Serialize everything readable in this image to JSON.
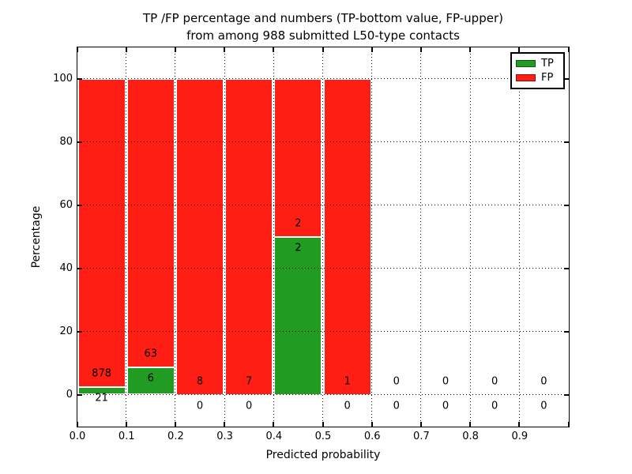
{
  "figure": {
    "title_line1": "TP /FP percentage and numbers (TP-bottom value, FP-upper)",
    "title_line2": "from among 988 submitted L50-type contacts",
    "xlabel": "Predicted probability",
    "ylabel": "Percentage"
  },
  "colors": {
    "tp_green": "#229b22",
    "fp_red": "#ff1e14",
    "grid": "#000000",
    "text": "#000000",
    "background": "#ffffff"
  },
  "legend": {
    "position": "upper right",
    "entries": [
      {
        "label": "TP",
        "color_key": "tp_green"
      },
      {
        "label": "FP",
        "color_key": "fp_red"
      }
    ]
  },
  "chart_data": {
    "type": "bar",
    "stacked": true,
    "title": "TP /FP percentage and numbers (TP-bottom value, FP-upper) from among 988 submitted L50-type contacts",
    "xlabel": "Predicted probability",
    "ylabel": "Percentage",
    "total_contacts": 988,
    "xlim": [
      0.0,
      1.0
    ],
    "ylim": [
      -10,
      110
    ],
    "bin_width": 0.1,
    "grid": "dotted",
    "legend_position": "upper right",
    "categories": [
      "0.0-0.1",
      "0.1-0.2",
      "0.2-0.3",
      "0.3-0.4",
      "0.4-0.5",
      "0.5-0.6",
      "0.6-0.7",
      "0.7-0.8",
      "0.8-0.9",
      "0.9-1.0"
    ],
    "xtick_labels": [
      "0.0",
      "0.1",
      "0.2",
      "0.3",
      "0.4",
      "0.5",
      "0.6",
      "0.7",
      "0.8",
      "0.9"
    ],
    "ytick_values": [
      0,
      20,
      40,
      60,
      80,
      100
    ],
    "series": [
      {
        "name": "TP",
        "counts": [
          21,
          6,
          0,
          0,
          2,
          0,
          0,
          0,
          0,
          0
        ],
        "percent": [
          2.34,
          8.7,
          0,
          0,
          50,
          0,
          0,
          0,
          0,
          0
        ]
      },
      {
        "name": "FP",
        "counts": [
          878,
          63,
          8,
          7,
          2,
          1,
          0,
          0,
          0,
          0
        ],
        "percent": [
          97.66,
          91.3,
          100,
          100,
          50,
          100,
          0,
          0,
          0,
          0
        ]
      }
    ]
  }
}
